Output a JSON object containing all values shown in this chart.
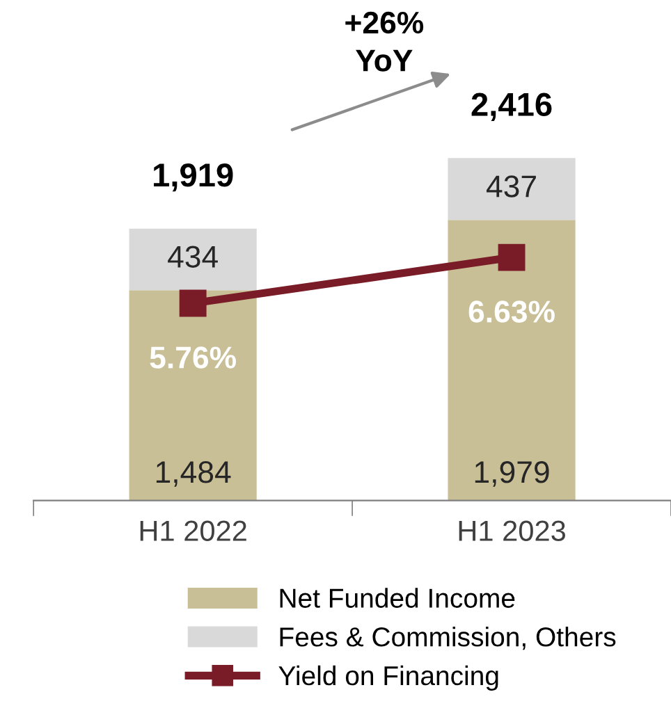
{
  "chart_data": {
    "type": "bar",
    "stacked": true,
    "categories": [
      "H1 2022",
      "H1 2023"
    ],
    "series": [
      {
        "name": "Net Funded Income",
        "color": "#c9bf97",
        "values": [
          1484,
          1979
        ],
        "value_labels": [
          "1,484",
          "1,979"
        ]
      },
      {
        "name": "Fees & Commission, Others",
        "color": "#d9d9d9",
        "values": [
          434,
          437
        ],
        "value_labels": [
          "434",
          "437"
        ]
      },
      {
        "name": "Yield on Financing",
        "type": "line",
        "axis": "y2",
        "color": "#7a1c27",
        "marker": "square",
        "values": [
          5.76,
          6.63
        ],
        "value_labels": [
          "5.76%",
          "6.63%"
        ]
      }
    ],
    "totals": [
      "1,919",
      "2,416"
    ],
    "tick_labels": "x",
    "annotations": [
      "+26%\nYoY"
    ],
    "legend": "bottom",
    "grid": false
  }
}
